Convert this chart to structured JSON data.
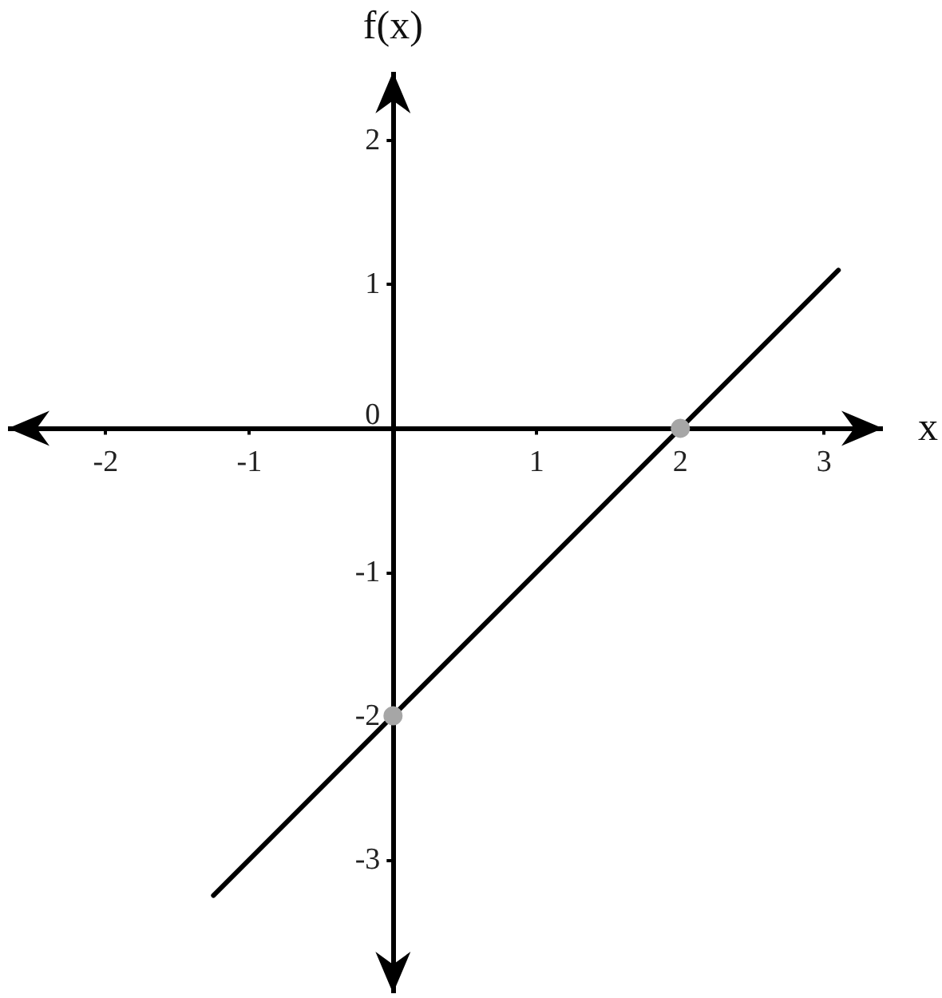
{
  "chart_data": {
    "type": "line",
    "xlabel": "x",
    "ylabel": "f(x)",
    "xlim": [
      -2.68,
      3.41
    ],
    "ylim": [
      -3.93,
      2.48
    ],
    "xticks": [
      -2,
      -1,
      1,
      2,
      3
    ],
    "yticks": [
      -3,
      -2,
      -1,
      0,
      1,
      2
    ],
    "grid": false,
    "series": [
      {
        "color": "#000000",
        "x": [
          -1.25,
          3.1
        ],
        "values": [
          -3.25,
          1.1
        ],
        "marker": "none",
        "line_style": "solid"
      },
      {
        "type": "scatter",
        "color": "#a6a6a6",
        "x": [
          0,
          2
        ],
        "values": [
          -2,
          0
        ],
        "marker": "circle"
      }
    ]
  }
}
